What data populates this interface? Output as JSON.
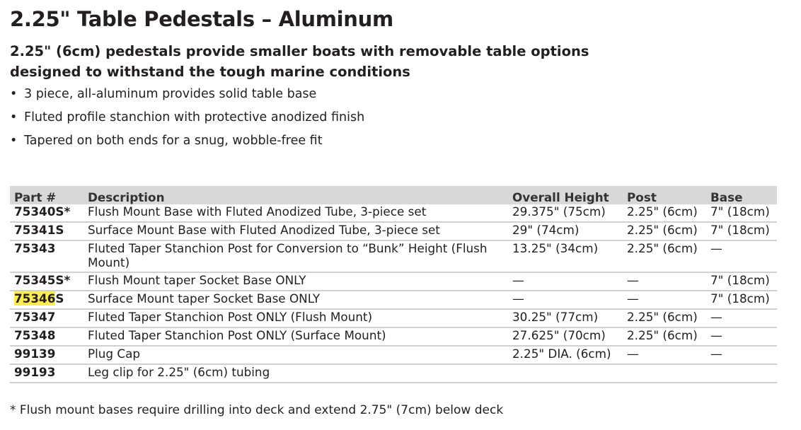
{
  "title": "2.25\" Table Pedestals – Aluminum",
  "subtitle": "2.25\" (6cm) pedestals provide smaller boats with removable table options designed to withstand the tough marine conditions",
  "bullet_char": "•",
  "bullets": [
    "3 piece, all-aluminum provides solid table base",
    "Fluted profile stanchion with protective anodized finish",
    "Tapered on both ends for a snug, wobble-free fit"
  ],
  "table": {
    "headers": [
      "Part #",
      "Description",
      "Overall Height",
      "Post",
      "Base"
    ],
    "rows": [
      {
        "part": "75340S*",
        "description": "Flush Mount Base with Fluted Anodized Tube, 3-piece set",
        "height": "29.375\" (75cm)",
        "post": "2.25\" (6cm)",
        "base": "7\" (18cm)"
      },
      {
        "part": "75341S",
        "description": "Surface Mount Base with Fluted Anodized Tube, 3-piece set",
        "height": "29\" (74cm)",
        "post": "2.25\" (6cm)",
        "base": "7\" (18cm)"
      },
      {
        "part": "75343",
        "description": "Fluted Taper Stanchion Post for Conversion to “Bunk” Height (Flush Mount)",
        "height": "13.25\" (34cm)",
        "post": "2.25\" (6cm)",
        "base": "—"
      },
      {
        "part": "75345S*",
        "description": "Flush Mount taper Socket Base ONLY",
        "height": "—",
        "post": "—",
        "base": "7\" (18cm)"
      },
      {
        "part": "75346S",
        "part_highlight": "75346",
        "part_rest": "S",
        "description": "Surface Mount taper Socket Base ONLY",
        "height": "—",
        "post": "—",
        "base": "7\" (18cm)"
      },
      {
        "part": "75347",
        "description": "Fluted Taper Stanchion Post ONLY (Flush Mount)",
        "height": "30.25\" (77cm)",
        "post": "2.25\" (6cm)",
        "base": "—"
      },
      {
        "part": "75348",
        "description": "Fluted Taper Stanchion Post ONLY (Surface Mount)",
        "height": "27.625\" (70cm)",
        "post": "2.25\" (6cm)",
        "base": "—"
      },
      {
        "part": "99139",
        "description": "Plug Cap",
        "height": "2.25\" DIA. (6cm)",
        "post": "—",
        "base": "—"
      },
      {
        "part": "99193",
        "description": "Leg clip for 2.25\" (6cm) tubing",
        "height": "",
        "post": "",
        "base": ""
      }
    ]
  },
  "footnote": "* Flush mount bases require drilling into deck and extend 2.75\" (7cm) below deck",
  "colors": {
    "highlight": "#fbeb57",
    "header_bg": "#d8d8d8"
  }
}
